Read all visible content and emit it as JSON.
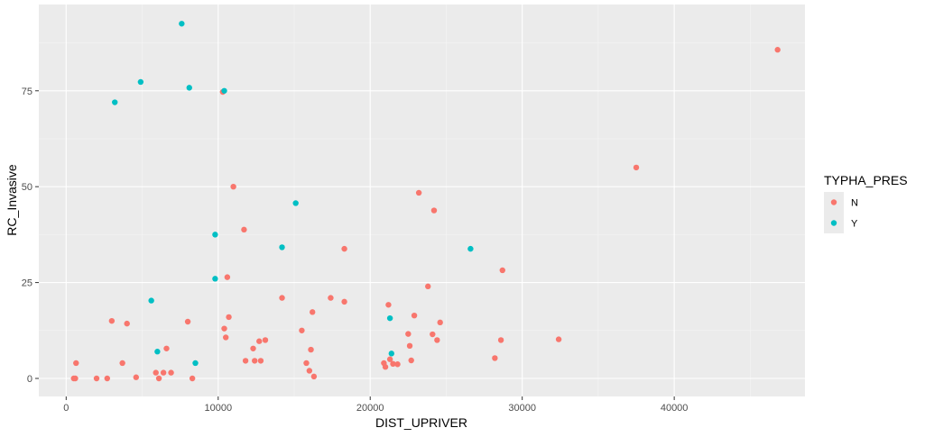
{
  "chart_data": {
    "type": "scatter",
    "xlabel": "DIST_UPRIVER",
    "ylabel": "RC_Invasive",
    "xlim": [
      -1800,
      48600
    ],
    "ylim": [
      -4.7,
      97.5
    ],
    "x_ticks": [
      0,
      10000,
      20000,
      30000,
      40000
    ],
    "x_tick_labels": [
      "0",
      "10000",
      "20000",
      "30000",
      "40000"
    ],
    "y_ticks": [
      0,
      25,
      50,
      75
    ],
    "y_tick_labels": [
      "0",
      "25",
      "50",
      "75"
    ],
    "grid": true,
    "legend": {
      "title": "TYPHA_PRES",
      "placement": "right"
    },
    "series": [
      {
        "name": "N",
        "color": "#F8766D",
        "points": [
          [
            500,
            0
          ],
          [
            600,
            0
          ],
          [
            650,
            4
          ],
          [
            2000,
            0
          ],
          [
            2700,
            0
          ],
          [
            3000,
            15
          ],
          [
            3700,
            4
          ],
          [
            4000,
            14.3
          ],
          [
            4600,
            0.3
          ],
          [
            5900,
            1.5
          ],
          [
            6100,
            0
          ],
          [
            6400,
            1.5
          ],
          [
            6600,
            7.8
          ],
          [
            6900,
            1.5
          ],
          [
            8000,
            14.8
          ],
          [
            8300,
            0
          ],
          [
            10300,
            74.7
          ],
          [
            10400,
            13
          ],
          [
            10500,
            10.7
          ],
          [
            10600,
            26.4
          ],
          [
            10700,
            16
          ],
          [
            11000,
            50
          ],
          [
            11700,
            38.8
          ],
          [
            11800,
            4.6
          ],
          [
            12300,
            7.8
          ],
          [
            12400,
            4.6
          ],
          [
            12700,
            9.7
          ],
          [
            12800,
            4.6
          ],
          [
            13100,
            10
          ],
          [
            14200,
            21
          ],
          [
            15500,
            12.5
          ],
          [
            15800,
            4
          ],
          [
            16000,
            2
          ],
          [
            16100,
            7.5
          ],
          [
            16200,
            17.3
          ],
          [
            16300,
            0.5
          ],
          [
            17400,
            21
          ],
          [
            18300,
            33.8
          ],
          [
            18300,
            20
          ],
          [
            20900,
            4
          ],
          [
            21000,
            3
          ],
          [
            21200,
            19.2
          ],
          [
            21300,
            5
          ],
          [
            21500,
            3.8
          ],
          [
            21800,
            3.7
          ],
          [
            22500,
            11.6
          ],
          [
            22600,
            8.5
          ],
          [
            22700,
            4.7
          ],
          [
            22900,
            16.4
          ],
          [
            23200,
            48.4
          ],
          [
            23800,
            24
          ],
          [
            24100,
            11.5
          ],
          [
            24200,
            43.8
          ],
          [
            24400,
            10
          ],
          [
            24600,
            14.6
          ],
          [
            28200,
            5.3
          ],
          [
            28600,
            10
          ],
          [
            28700,
            28.2
          ],
          [
            32400,
            10.2
          ],
          [
            37500,
            55
          ],
          [
            46800,
            85.7
          ]
        ]
      },
      {
        "name": "Y",
        "color": "#00BFC4",
        "points": [
          [
            3200,
            72
          ],
          [
            4900,
            77.3
          ],
          [
            5600,
            20.3
          ],
          [
            6000,
            7
          ],
          [
            7600,
            92.5
          ],
          [
            8100,
            75.8
          ],
          [
            8500,
            4
          ],
          [
            9800,
            37.5
          ],
          [
            9800,
            26
          ],
          [
            10400,
            75
          ],
          [
            14200,
            34.2
          ],
          [
            15100,
            45.7
          ],
          [
            21300,
            15.7
          ],
          [
            21400,
            6.5
          ],
          [
            26600,
            33.8
          ]
        ]
      }
    ]
  }
}
